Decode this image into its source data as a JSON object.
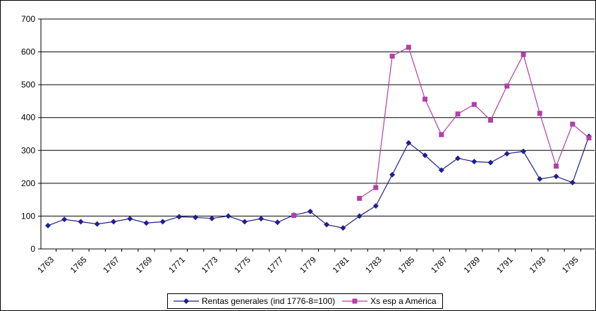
{
  "chart_data": {
    "type": "line",
    "title": "",
    "xlabel": "",
    "ylabel": "",
    "ylim": [
      0,
      700
    ],
    "yticks": [
      "0",
      "100",
      "200",
      "300",
      "400",
      "500",
      "600",
      "700"
    ],
    "xtick_labels": [
      "1763",
      "1765",
      "1767",
      "1769",
      "1771",
      "1773",
      "1775",
      "1777",
      "1779",
      "1781",
      "1783",
      "1785",
      "1787",
      "1789",
      "1791",
      "1793",
      "1795"
    ],
    "x": [
      1763,
      1764,
      1765,
      1766,
      1767,
      1768,
      1769,
      1770,
      1771,
      1772,
      1773,
      1774,
      1775,
      1776,
      1777,
      1778,
      1779,
      1780,
      1781,
      1782,
      1783,
      1784,
      1785,
      1786,
      1787,
      1788,
      1789,
      1790,
      1791,
      1792,
      1793,
      1794,
      1795,
      1796
    ],
    "grid": "horizontal",
    "legend_position": "bottom",
    "series": [
      {
        "name": "Rentas generales (ind 1776-8=100)",
        "color": "#1f1f8f",
        "marker": "diamond",
        "values": [
          71,
          90,
          83,
          76,
          83,
          92,
          79,
          83,
          98,
          96,
          93,
          100,
          83,
          92,
          81,
          103,
          114,
          74,
          64,
          100,
          131,
          226,
          323,
          285,
          240,
          276,
          266,
          263,
          290,
          297,
          213,
          221,
          202,
          343
        ]
      },
      {
        "name": "Xs esp a América",
        "color": "#b040a8",
        "marker": "square",
        "values": [
          null,
          null,
          null,
          null,
          null,
          null,
          null,
          null,
          null,
          null,
          null,
          null,
          null,
          null,
          null,
          102,
          null,
          null,
          null,
          154,
          187,
          587,
          614,
          456,
          348,
          411,
          440,
          392,
          496,
          592,
          413,
          252,
          380,
          338
        ]
      }
    ]
  }
}
